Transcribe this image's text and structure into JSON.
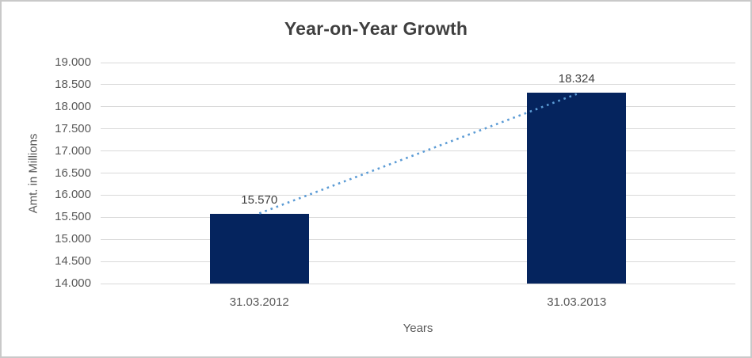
{
  "chart_data": {
    "type": "bar",
    "title": "Year-on-Year Growth",
    "xlabel": "Years",
    "ylabel": "Amt. in Millions",
    "categories": [
      "31.03.2012",
      "31.03.2013"
    ],
    "values": [
      15570,
      18324
    ],
    "data_labels": [
      "15.570",
      "18.324"
    ],
    "ylim": [
      14000,
      19000
    ],
    "ytick_step": 500,
    "yticks": [
      {
        "value": 14000,
        "label": "14.000"
      },
      {
        "value": 14500,
        "label": "14.500"
      },
      {
        "value": 15000,
        "label": "15.000"
      },
      {
        "value": 15500,
        "label": "15.500"
      },
      {
        "value": 16000,
        "label": "16.000"
      },
      {
        "value": 16500,
        "label": "16.500"
      },
      {
        "value": 17000,
        "label": "17.000"
      },
      {
        "value": 17500,
        "label": "17.500"
      },
      {
        "value": 18000,
        "label": "18.000"
      },
      {
        "value": 18500,
        "label": "18.500"
      },
      {
        "value": 19000,
        "label": "19.000"
      }
    ],
    "grid": true,
    "legend": "none",
    "trendline": {
      "style": "dotted",
      "from_category": "31.03.2012",
      "to_category": "31.03.2013"
    },
    "colors": {
      "bar": "#05245E",
      "trendline": "#5B9BD5",
      "gridline": "#D9D9D9",
      "axis_text": "#595959",
      "title_text": "#3F3F3F",
      "data_label_text": "#404040",
      "chart_border": "#C9C9C9",
      "background": "#FFFFFF"
    }
  }
}
